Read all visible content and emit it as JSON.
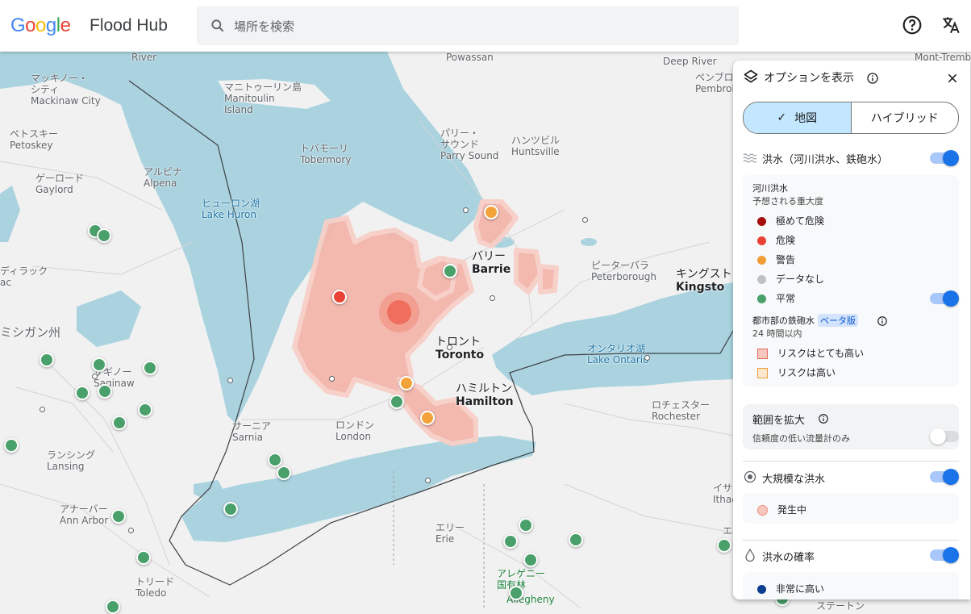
{
  "header": {
    "logo": "Google",
    "product": "Flood Hub",
    "search_placeholder": "場所を検索"
  },
  "map": {
    "labels": [
      {
        "text": "Powassan",
        "cls": ""
      },
      {
        "text": "Deep River",
        "cls": ""
      },
      {
        "text": "Mont-Trembl",
        "cls": ""
      },
      {
        "text": "ペンブロ",
        "cls": ""
      },
      {
        "text": "Pembrok",
        "cls": ""
      },
      {
        "text": "マッキノー・\nシティ\nMackinaw City",
        "cls": ""
      },
      {
        "text": "マニトゥーリン島\nManitoulin\nIsland",
        "cls": ""
      },
      {
        "text": "ペトスキー\nPetoskey",
        "cls": ""
      },
      {
        "text": "ゲーロード\nGaylord",
        "cls": ""
      },
      {
        "text": "アルピナ\nAlpena",
        "cls": ""
      },
      {
        "text": "トバモーリ\nTobermory",
        "cls": ""
      },
      {
        "text": "パリー・\nサウンド\nParry Sound",
        "cls": ""
      },
      {
        "text": "ハンツビル\nHuntsville",
        "cls": ""
      },
      {
        "text": "ヒューロン湖\nLake Huron",
        "cls": "water"
      },
      {
        "text": "バリー\nBarrie",
        "cls": "city"
      },
      {
        "text": "ピーターバラ\nPeterborough",
        "cls": ""
      },
      {
        "text": "キングスト\nKingsto",
        "cls": "city"
      },
      {
        "text": "ディラック\nac",
        "cls": ""
      },
      {
        "text": "ミシガン州",
        "cls": "region"
      },
      {
        "text": "トロント\nToronto",
        "cls": "city"
      },
      {
        "text": "オンタリオ湖\nLake Ontario",
        "cls": "water"
      },
      {
        "text": "サギノー\nSaginaw",
        "cls": ""
      },
      {
        "text": "ハミルトン\nHamilton",
        "cls": "city"
      },
      {
        "text": "ロチェスター\nRochester",
        "cls": ""
      },
      {
        "text": "サーニア\nSarnia",
        "cls": ""
      },
      {
        "text": "ロンドン\nLondon",
        "cls": ""
      },
      {
        "text": "ランシング\nLansing",
        "cls": ""
      },
      {
        "text": "アナーバー\nAnn Arbor",
        "cls": ""
      },
      {
        "text": "エリー\nErie",
        "cls": ""
      },
      {
        "text": "イサ\nIthac",
        "cls": ""
      },
      {
        "text": "エ",
        "cls": ""
      },
      {
        "text": "トリード\nToledo",
        "cls": ""
      },
      {
        "text": "アレゲニー\n国有林",
        "cls": "park"
      },
      {
        "text": "Allegheny",
        "cls": "park"
      },
      {
        "text": "ステートン",
        "cls": ""
      },
      {
        "text": "River",
        "cls": ""
      }
    ]
  },
  "panel": {
    "title": "オプションを表示",
    "seg_map": "地図",
    "seg_hybrid": "ハイブリッド",
    "flood_layer": "洪水（河川洪水、鉄砲水）",
    "river_flood": "河川洪水",
    "severity": "予想される重大度",
    "legend": [
      {
        "label": "極めて危険",
        "color": "#a50e0e"
      },
      {
        "label": "危険",
        "color": "#ea4335"
      },
      {
        "label": "警告",
        "color": "#f29d38"
      },
      {
        "label": "データなし",
        "color": "#bdc1c6"
      },
      {
        "label": "平常",
        "color": "#4aa06a"
      }
    ],
    "urban_flash": "都市部の鉄砲水",
    "beta": "ベータ版",
    "within": "24 時間以内",
    "risk_very_high": "リスクはとても高い",
    "risk_high": "リスクは高い",
    "expand": "範囲を拡大",
    "expand_sub": "信頼度の低い流量計のみ",
    "major_flood": "大規模な洪水",
    "occurring": "発生中",
    "probability": "洪水の確率",
    "very_high": "非常に高い"
  },
  "colors": {
    "water": "#aad3df",
    "flood_area": "#f4b6ab",
    "accent": "#1a73e8"
  }
}
